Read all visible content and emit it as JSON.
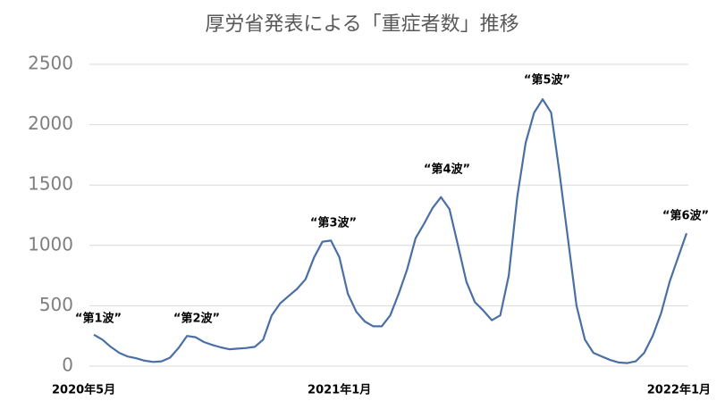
{
  "chart_data": {
    "type": "line",
    "title": "厚労省発表による「重症者数」推移",
    "categories": [
      "2020年5月",
      null,
      null,
      null,
      null,
      null,
      null,
      null,
      null,
      null,
      null,
      null,
      null,
      null,
      null,
      null,
      null,
      null,
      null,
      null,
      null,
      null,
      null,
      null,
      null,
      null,
      null,
      null,
      null,
      "2021年1月",
      null,
      null,
      null,
      null,
      null,
      null,
      null,
      null,
      null,
      null,
      null,
      null,
      null,
      null,
      null,
      null,
      null,
      null,
      null,
      null,
      null,
      null,
      null,
      null,
      null,
      null,
      null,
      null,
      null,
      null,
      null,
      null,
      null,
      null,
      null,
      null,
      null,
      null,
      null,
      null,
      "2022年1月"
    ],
    "series": [
      {
        "name": "重症者数",
        "color": "#4a6fa5",
        "values": [
          260,
          220,
          160,
          110,
          80,
          65,
          45,
          35,
          40,
          70,
          150,
          250,
          240,
          200,
          175,
          155,
          140,
          145,
          150,
          160,
          220,
          420,
          520,
          580,
          640,
          720,
          900,
          1030,
          1040,
          900,
          600,
          450,
          370,
          330,
          330,
          420,
          600,
          800,
          1060,
          1180,
          1310,
          1400,
          1300,
          1000,
          700,
          530,
          460,
          380,
          420,
          750,
          1400,
          1850,
          2100,
          2210,
          2100,
          1600,
          1050,
          500,
          220,
          110,
          80,
          50,
          30,
          25,
          40,
          110,
          250,
          440,
          700,
          900,
          1100
        ]
      }
    ],
    "annotations": [
      "“第1波”",
      "“第2波”",
      "“第3波”",
      "“第4波”",
      "“第5波”",
      "“第6波”"
    ],
    "ylim": [
      0,
      2500
    ],
    "yticks": [
      0,
      500,
      1000,
      1500,
      2000,
      2500
    ],
    "grid": true
  }
}
